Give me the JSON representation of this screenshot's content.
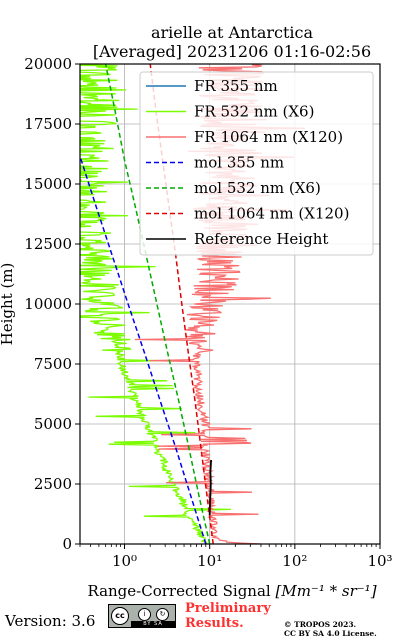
{
  "chart_data": {
    "type": "line",
    "title": "arielle at Antarctica",
    "subtitle": "[Averaged] 20231206 01:16-02:56",
    "xlabel": "Range-Corrected Signal",
    "xlabel_unit": "[Mm⁻¹ * sr⁻¹]",
    "ylabel": "Height (m)",
    "xscale": "log",
    "xlim": [
      0.3,
      1000
    ],
    "ylim": [
      0,
      20000
    ],
    "x_ticks": [
      1,
      10,
      100,
      1000
    ],
    "x_tick_labels": [
      "10⁰",
      "10¹",
      "10²",
      "10³"
    ],
    "y_ticks": [
      0,
      2500,
      5000,
      7500,
      10000,
      12500,
      15000,
      17500,
      20000
    ],
    "y_tick_labels": [
      "0",
      "2500",
      "5000",
      "7500",
      "10000",
      "12500",
      "15000",
      "17500",
      "20000"
    ],
    "grid": true,
    "legend_position": "top-right",
    "series": [
      {
        "name": "FR 355 nm",
        "color": "#1f77b4",
        "style": "solid",
        "points": []
      },
      {
        "name": "FR 532 nm (X6)",
        "color": "#7cfc00",
        "style": "solid",
        "noisy": true,
        "points": [
          [
            9,
            0
          ],
          [
            7.5,
            500
          ],
          [
            6,
            1000
          ],
          [
            4.5,
            2000
          ],
          [
            3.2,
            3000
          ],
          [
            2.4,
            4000
          ],
          [
            1.8,
            5000
          ],
          [
            1.35,
            6000
          ],
          [
            1.05,
            7000
          ],
          [
            0.85,
            8000
          ],
          [
            0.68,
            9000
          ],
          [
            0.55,
            10000
          ],
          [
            0.46,
            11000
          ],
          [
            0.4,
            12000
          ],
          [
            0.36,
            13000
          ],
          [
            0.34,
            14000
          ],
          [
            0.33,
            15000
          ],
          [
            0.33,
            16000
          ],
          [
            0.34,
            17000
          ],
          [
            0.34,
            18000
          ],
          [
            0.35,
            19000
          ],
          [
            0.35,
            20000
          ]
        ]
      },
      {
        "name": "FR 1064 nm (X120)",
        "color": "#f87070",
        "style": "solid",
        "noisy": true,
        "points": [
          [
            38,
            0
          ],
          [
            16,
            80
          ],
          [
            12,
            300
          ],
          [
            11,
            700
          ],
          [
            10.5,
            1500
          ],
          [
            10,
            2500
          ],
          [
            9.2,
            3500
          ],
          [
            8.8,
            4500
          ],
          [
            9,
            5000
          ],
          [
            8,
            5500
          ],
          [
            7.5,
            6500
          ],
          [
            7,
            7500
          ],
          [
            7,
            8500
          ],
          [
            8.5,
            9000
          ],
          [
            9,
            9500
          ],
          [
            10,
            10000
          ],
          [
            11,
            10500
          ],
          [
            12,
            11000
          ],
          [
            13,
            11500
          ],
          [
            13,
            12000
          ],
          [
            14,
            12500
          ],
          [
            14,
            13000
          ],
          [
            15,
            14000
          ],
          [
            17,
            15000
          ],
          [
            18,
            16000
          ],
          [
            18,
            17000
          ],
          [
            19,
            18000
          ],
          [
            20,
            19000
          ],
          [
            20,
            20000
          ]
        ]
      },
      {
        "name": "mol 355 nm",
        "color": "#0000ee",
        "style": "dashed",
        "points": [
          [
            9,
            0
          ],
          [
            6,
            2000
          ],
          [
            4,
            4000
          ],
          [
            2.6,
            6000
          ],
          [
            1.7,
            8000
          ],
          [
            1.1,
            10000
          ],
          [
            0.72,
            12000
          ],
          [
            0.47,
            14000
          ],
          [
            0.31,
            16000
          ],
          [
            0.2,
            18000
          ]
        ]
      },
      {
        "name": "mol 532 nm (X6)",
        "color": "#00aa00",
        "style": "dashed",
        "points": [
          [
            10,
            0
          ],
          [
            7.5,
            2000
          ],
          [
            5.7,
            4000
          ],
          [
            4.3,
            6000
          ],
          [
            3.2,
            8000
          ],
          [
            2.4,
            10000
          ],
          [
            1.8,
            12000
          ],
          [
            1.35,
            14000
          ],
          [
            1.0,
            16000
          ],
          [
            0.78,
            18000
          ],
          [
            0.6,
            20000
          ]
        ]
      },
      {
        "name": "mol 1064 nm (X120)",
        "color": "#dd0000",
        "style": "dashed",
        "points": [
          [
            11,
            0
          ],
          [
            9.3,
            2000
          ],
          [
            7.9,
            4000
          ],
          [
            6.7,
            6000
          ],
          [
            5.6,
            8000
          ],
          [
            4.7,
            10000
          ],
          [
            4.0,
            12000
          ],
          [
            3.35,
            14000
          ],
          [
            2.8,
            16000
          ],
          [
            2.35,
            18000
          ],
          [
            2.0,
            20000
          ]
        ]
      },
      {
        "name": "Reference Height",
        "color": "#000000",
        "style": "solid",
        "points": [
          [
            10,
            1200
          ],
          [
            10.1,
            1800
          ],
          [
            10.3,
            2500
          ],
          [
            10.2,
            3000
          ],
          [
            10.4,
            3500
          ]
        ]
      }
    ]
  },
  "footer": {
    "version": "Version: 3.6",
    "preliminary_line1": "Preliminary",
    "preliminary_line2": "Results.",
    "copyright_line1": "© TROPOS 2023.",
    "copyright_line2": "CC BY SA 4.0 License.",
    "license_icon": "cc-by-sa-badge"
  }
}
